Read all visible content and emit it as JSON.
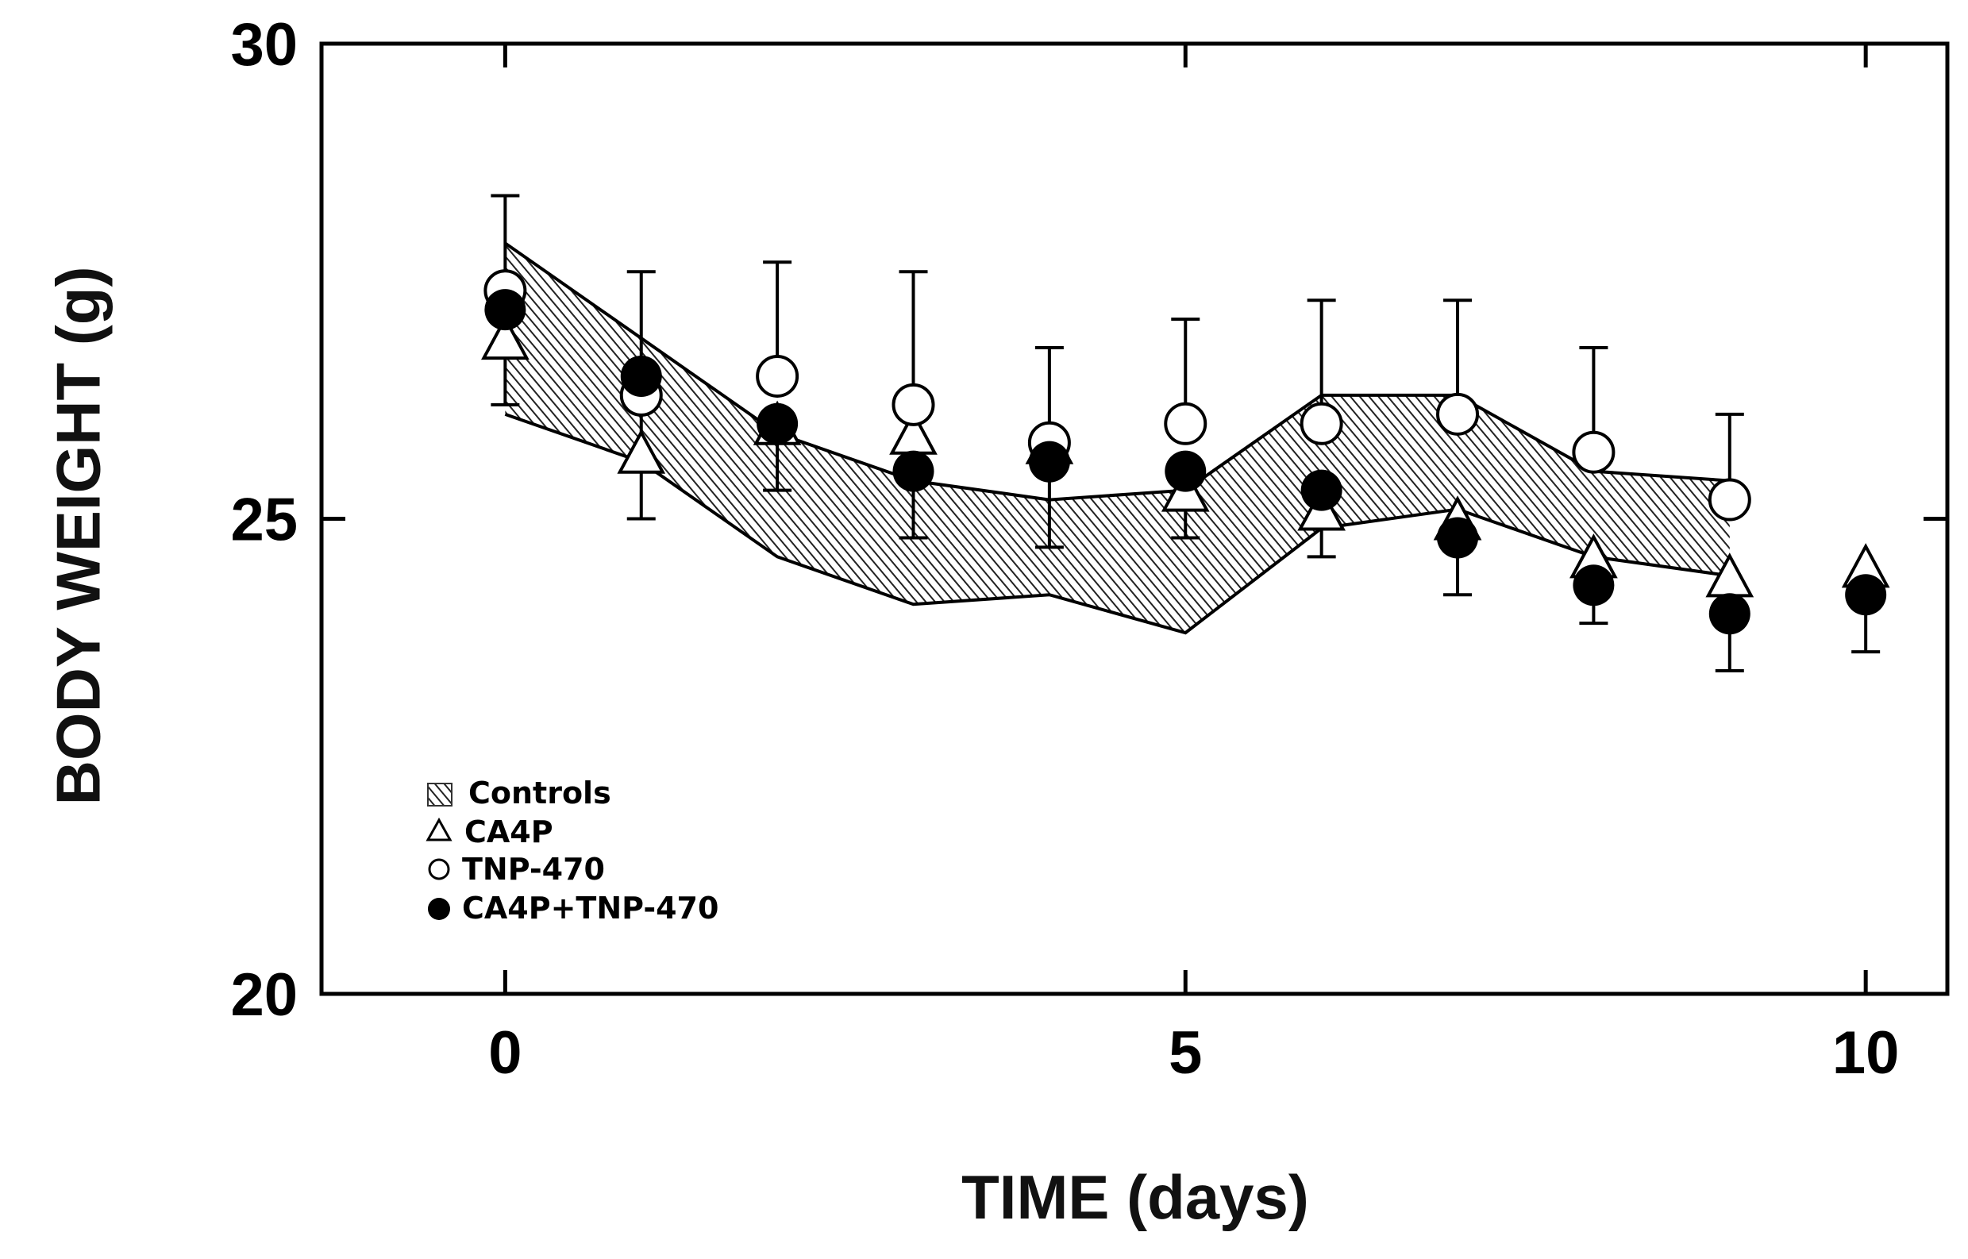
{
  "chart_data": {
    "type": "scatter",
    "title": "",
    "xlabel": "TIME (days)",
    "ylabel": "BODY WEIGHT (g)",
    "xlim": [
      -1.35,
      10.6
    ],
    "ylim": [
      20,
      30
    ],
    "x_ticks": [
      0,
      5,
      10
    ],
    "y_ticks": [
      20,
      25,
      30
    ],
    "x_tick_labels": [
      "0",
      "5",
      "10"
    ],
    "y_tick_labels": [
      "20",
      "25",
      "30"
    ],
    "grid": false,
    "legend_position": "lower-left",
    "controls_band": {
      "name": "Controls",
      "x": [
        0,
        1,
        2,
        3,
        4,
        5,
        6,
        7,
        8,
        9
      ],
      "upper": [
        27.9,
        26.9,
        25.9,
        25.4,
        25.2,
        25.3,
        26.3,
        26.3,
        25.5,
        25.4
      ],
      "lower": [
        26.1,
        25.6,
        24.6,
        24.1,
        24.2,
        23.8,
        24.9,
        25.1,
        24.6,
        24.4
      ]
    },
    "series": [
      {
        "name": "CA4P",
        "marker": "open-triangle",
        "x": [
          0,
          1,
          2,
          3,
          4,
          5,
          6,
          7,
          8,
          9,
          10
        ],
        "y": [
          26.9,
          25.7,
          26.0,
          25.9,
          25.8,
          25.3,
          25.1,
          25.0,
          24.6,
          24.4,
          24.5
        ],
        "error": []
      },
      {
        "name": "TNP-470",
        "marker": "open-circle",
        "x": [
          0,
          1,
          2,
          3,
          4,
          5,
          6,
          7,
          8,
          9
        ],
        "y": [
          27.4,
          26.3,
          26.5,
          26.2,
          25.8,
          26.0,
          26.0,
          26.1,
          25.7,
          25.2
        ],
        "error": [
          1.0,
          1.3,
          1.2,
          1.4,
          1.0,
          1.1,
          1.3,
          1.2,
          1.1,
          0.9
        ]
      },
      {
        "name": "CA4P+TNP-470",
        "marker": "filled-circle",
        "x": [
          0,
          1,
          2,
          3,
          4,
          5,
          6,
          7,
          8,
          9,
          10
        ],
        "y": [
          27.2,
          26.5,
          26.0,
          25.5,
          25.6,
          25.5,
          25.3,
          24.8,
          24.3,
          24.0,
          24.2
        ],
        "error": [
          1.0,
          1.5,
          0.7,
          0.7,
          0.9,
          0.7,
          0.7,
          0.6,
          0.4,
          0.6,
          0.6
        ]
      }
    ]
  }
}
